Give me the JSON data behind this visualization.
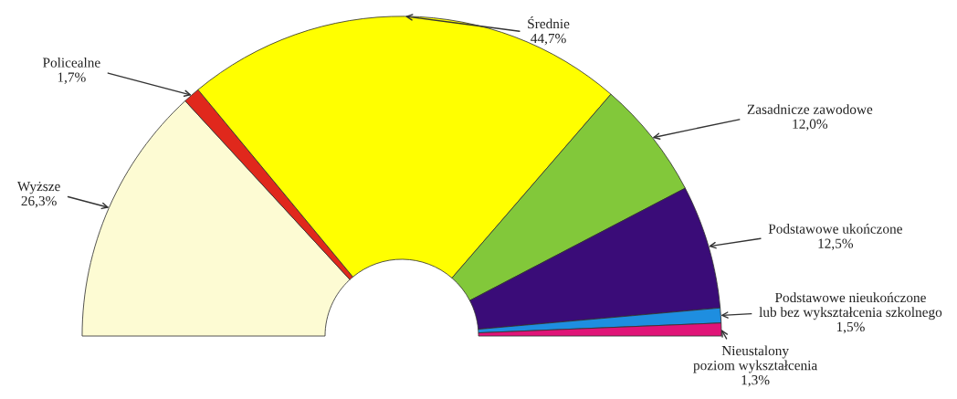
{
  "chart_data": {
    "type": "donut",
    "categories": [
      "Wyższe",
      "Policealne",
      "Średnie",
      "Zasadnicze zawodowe",
      "Podstawowe ukończone",
      "Podstawowe nieukończone\nlub bez wykształcenia szkolnego",
      "Nieustalony\npoziom wykształcenia"
    ],
    "values": [
      26.3,
      1.7,
      44.7,
      12.0,
      12.5,
      1.5,
      1.3
    ],
    "value_labels": [
      "26,3%",
      "1,7%",
      "44,7%",
      "12,0%",
      "12,5%",
      "1,5%",
      "1,3%"
    ],
    "colors": [
      "#fdfbd3",
      "#e0281c",
      "#ffff00",
      "#82c83a",
      "#3a0c78",
      "#1e8ee0",
      "#e01478"
    ]
  }
}
